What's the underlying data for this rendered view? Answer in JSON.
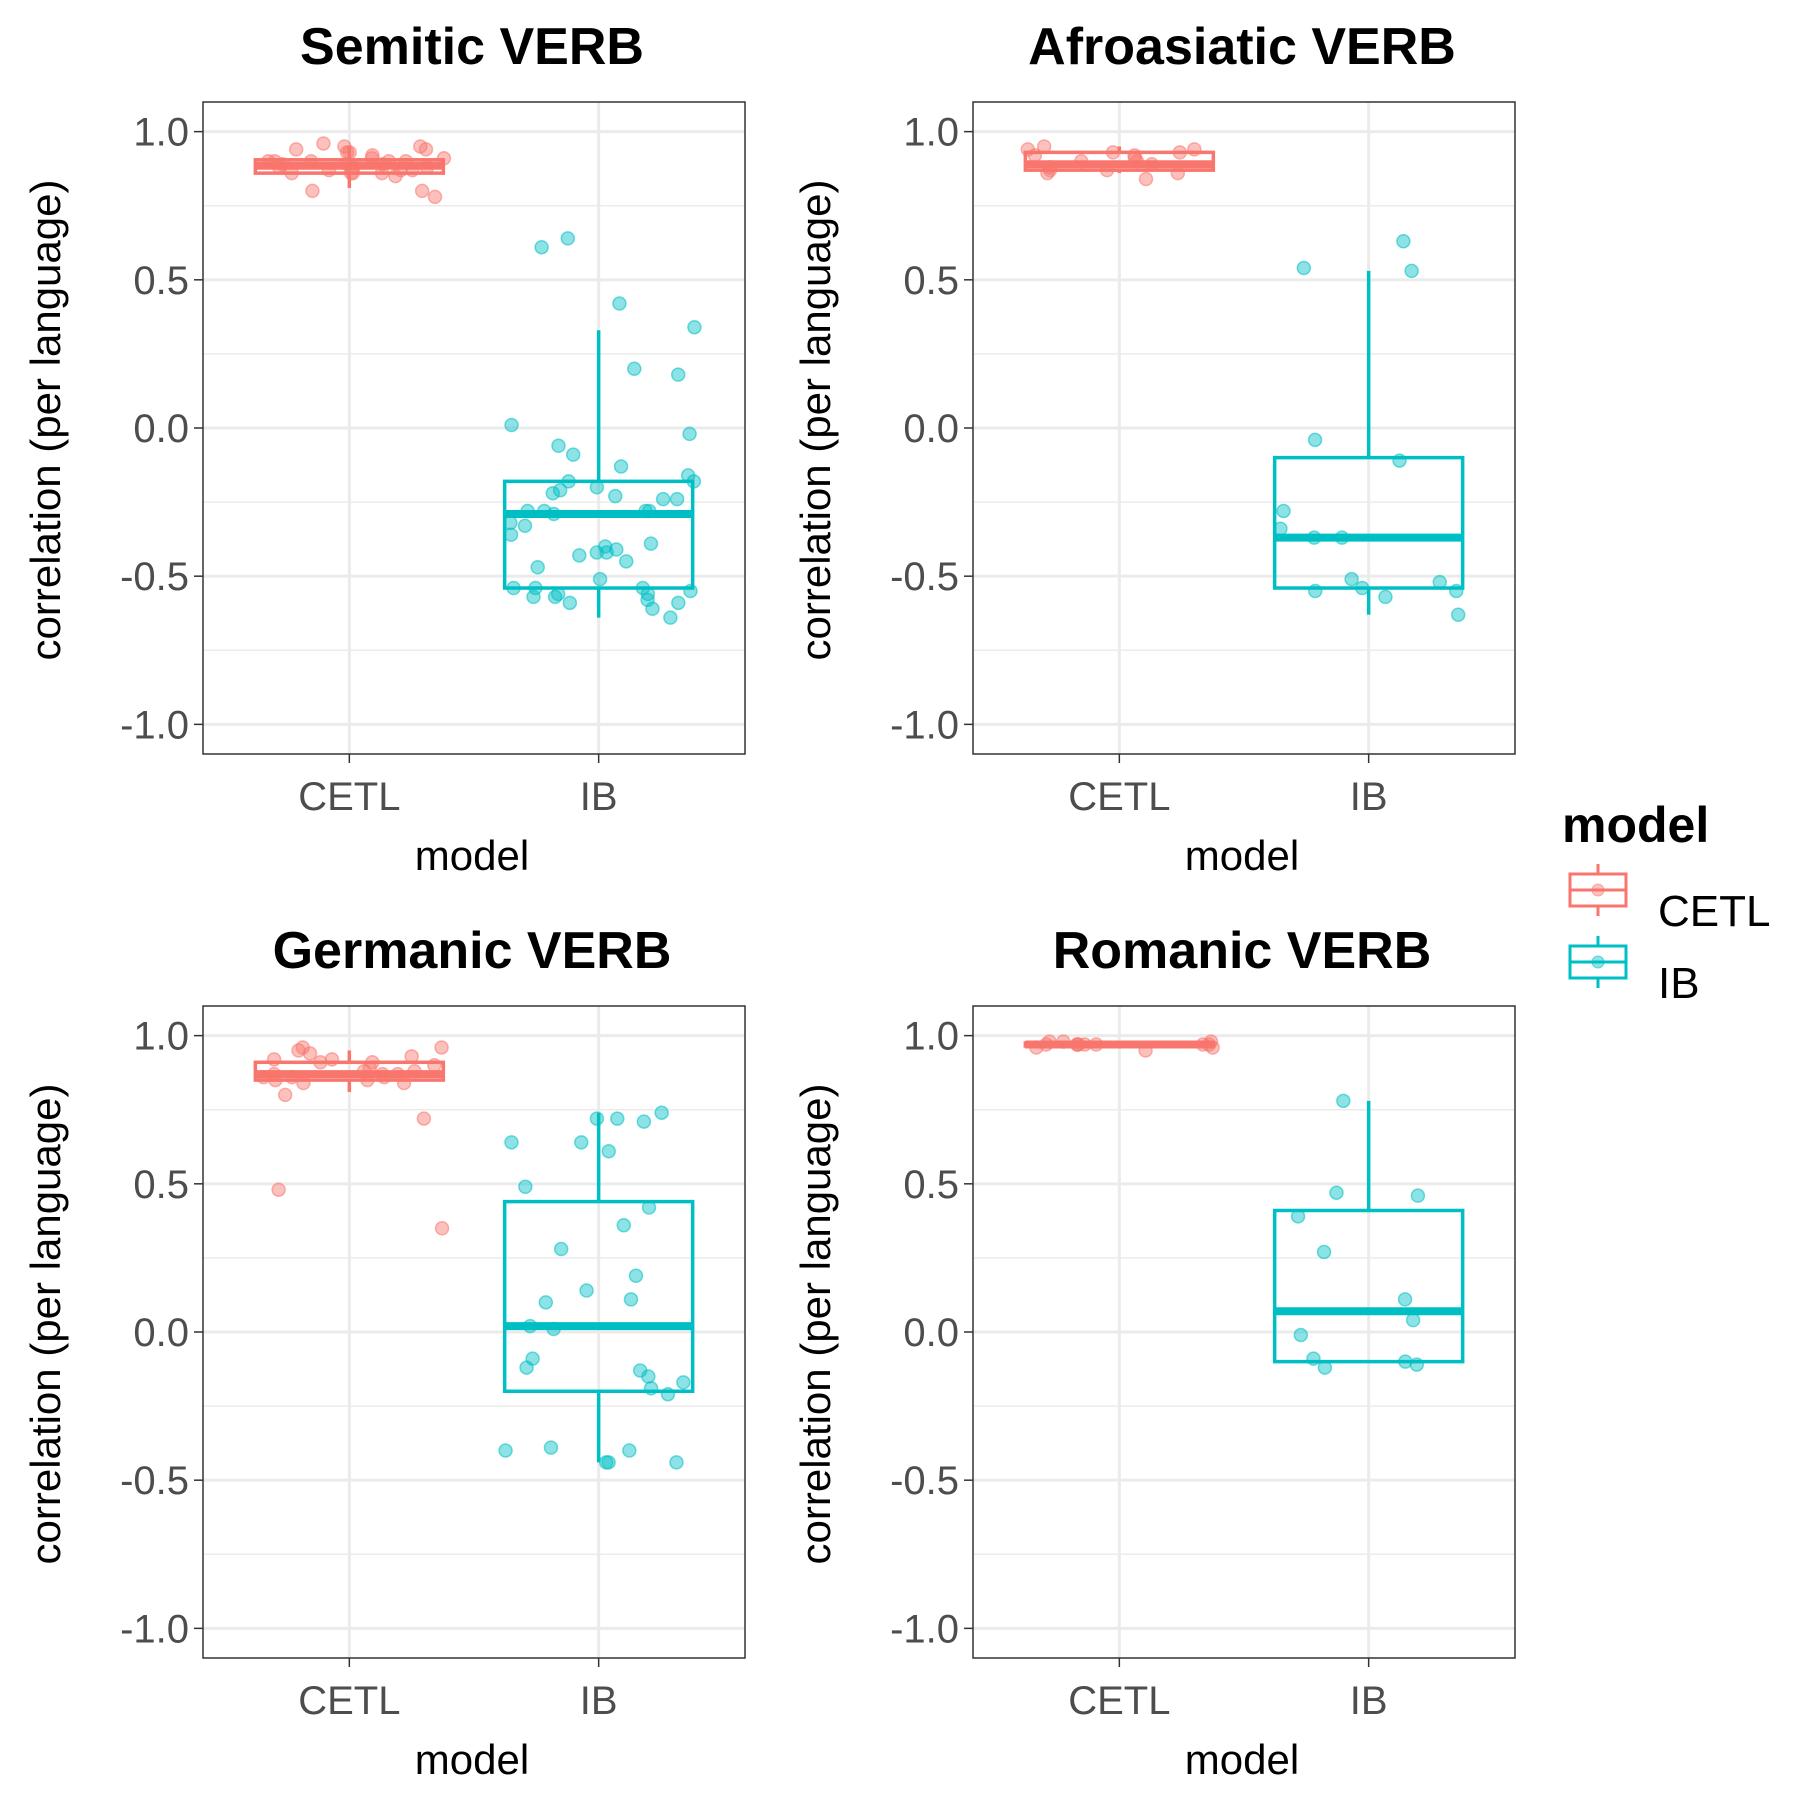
{
  "chart_data": [
    {
      "type": "boxplot",
      "title": "Semitic VERB",
      "xlabel": "model",
      "ylabel": "correlation (per language)",
      "ylim": [
        -1.1,
        1.1
      ],
      "yticks": [
        "-1.0",
        "-0.5",
        "0.0",
        "0.5",
        "1.0"
      ],
      "categories": [
        "CETL",
        "IB"
      ],
      "boxes": [
        {
          "name": "CETL",
          "q1": 0.86,
          "median": 0.885,
          "q3": 0.905,
          "whisker_low": 0.81,
          "whisker_high": 0.95,
          "points": [
            0.85,
            0.94,
            0.93,
            0.9,
            0.88,
            0.8,
            0.86,
            0.9,
            0.87,
            0.92,
            0.89,
            0.86,
            0.95,
            0.88,
            0.9,
            0.86,
            0.87,
            0.91,
            0.9,
            0.94,
            0.86,
            0.89,
            0.88,
            0.87,
            0.95,
            0.96,
            0.8,
            0.78,
            0.9,
            0.93,
            0.91,
            0.89
          ]
        },
        {
          "name": "IB",
          "q1": -0.54,
          "median": -0.29,
          "q3": -0.18,
          "whisker_low": -0.64,
          "whisker_high": 0.33,
          "points": [
            -0.13,
            -0.21,
            -0.28,
            -0.55,
            -0.56,
            -0.24,
            -0.42,
            -0.18,
            -0.28,
            -0.16,
            -0.06,
            -0.09,
            -0.22,
            -0.47,
            -0.45,
            -0.61,
            -0.51,
            -0.59,
            -0.24,
            -0.29,
            -0.64,
            0.42,
            -0.02,
            -0.36,
            -0.33,
            -0.28,
            -0.43,
            -0.59,
            -0.58,
            -0.18,
            -0.2,
            -0.54,
            -0.57,
            0.2,
            0.34,
            -0.23,
            -0.54,
            -0.56,
            0.18,
            0.01,
            -0.32,
            -0.39,
            -0.4,
            -0.42,
            -0.57,
            0.64,
            0.61,
            -0.28,
            -0.54,
            -0.41
          ]
        }
      ]
    },
    {
      "type": "boxplot",
      "title": "Afroasiatic VERB",
      "xlabel": "model",
      "ylabel": "correlation (per language)",
      "ylim": [
        -1.1,
        1.1
      ],
      "yticks": [
        "-1.0",
        "-0.5",
        "0.0",
        "0.5",
        "1.0"
      ],
      "categories": [
        "CETL",
        "IB"
      ],
      "boxes": [
        {
          "name": "CETL",
          "q1": 0.87,
          "median": 0.89,
          "q3": 0.93,
          "whisker_low": 0.86,
          "whisker_high": 0.95,
          "points": [
            0.94,
            0.95,
            0.84,
            0.92,
            0.89,
            0.86,
            0.93,
            0.88,
            0.9,
            0.87,
            0.92,
            0.86,
            0.9,
            0.87,
            0.94,
            0.91,
            0.93
          ]
        },
        {
          "name": "IB",
          "q1": -0.54,
          "median": -0.37,
          "q3": -0.1,
          "whisker_low": -0.63,
          "whisker_high": 0.53,
          "points": [
            0.53,
            -0.37,
            -0.34,
            -0.28,
            -0.55,
            -0.11,
            -0.57,
            -0.55,
            -0.37,
            0.54,
            0.63,
            -0.52,
            -0.54,
            -0.51,
            -0.04,
            -0.63
          ]
        }
      ]
    },
    {
      "type": "boxplot",
      "title": "Germanic VERB",
      "xlabel": "model",
      "ylabel": "correlation (per language)",
      "ylim": [
        -1.1,
        1.1
      ],
      "yticks": [
        "-1.0",
        "-0.5",
        "0.0",
        "0.5",
        "1.0"
      ],
      "categories": [
        "CETL",
        "IB"
      ],
      "boxes": [
        {
          "name": "CETL",
          "q1": 0.85,
          "median": 0.87,
          "q3": 0.91,
          "whisker_low": 0.81,
          "whisker_high": 0.95,
          "points": [
            0.92,
            0.95,
            0.91,
            0.84,
            0.96,
            0.88,
            0.85,
            0.86,
            0.84,
            0.86,
            0.9,
            0.89,
            0.8,
            0.96,
            0.92,
            0.87,
            0.94,
            0.48,
            0.93,
            0.86,
            0.35,
            0.91,
            0.85,
            0.87,
            0.72,
            0.87,
            0.88
          ]
        },
        {
          "name": "IB",
          "q1": -0.2,
          "median": 0.02,
          "q3": 0.44,
          "whisker_low": -0.44,
          "whisker_high": 0.74,
          "points": [
            0.49,
            -0.44,
            0.1,
            -0.15,
            -0.17,
            0.64,
            0.71,
            0.02,
            0.01,
            0.72,
            -0.44,
            0.36,
            -0.4,
            -0.19,
            -0.39,
            0.11,
            -0.44,
            0.64,
            0.74,
            0.72,
            -0.13,
            -0.09,
            -0.12,
            -0.21,
            0.19,
            -0.4,
            0.42,
            0.28,
            0.14,
            0.61
          ]
        }
      ]
    },
    {
      "type": "boxplot",
      "title": "Romanic VERB",
      "xlabel": "model",
      "ylabel": "correlation (per language)",
      "ylim": [
        -1.1,
        1.1
      ],
      "yticks": [
        "-1.0",
        "-0.5",
        "0.0",
        "0.5",
        "1.0"
      ],
      "categories": [
        "CETL",
        "IB"
      ],
      "boxes": [
        {
          "name": "CETL",
          "q1": 0.965,
          "median": 0.97,
          "q3": 0.975,
          "whisker_low": 0.96,
          "whisker_high": 0.98,
          "points": [
            0.97,
            0.98,
            0.97,
            0.96,
            0.97,
            0.97,
            0.98,
            0.97,
            0.96,
            0.97,
            0.95,
            0.97,
            0.98,
            0.97
          ]
        },
        {
          "name": "IB",
          "q1": -0.1,
          "median": 0.07,
          "q3": 0.41,
          "whisker_low": -0.1,
          "whisker_high": 0.78,
          "points": [
            -0.09,
            -0.1,
            0.47,
            0.27,
            0.46,
            -0.12,
            -0.11,
            0.04,
            -0.01,
            0.39,
            0.78,
            0.11
          ]
        }
      ]
    }
  ],
  "legend": {
    "title": "model",
    "items": [
      {
        "label": "CETL",
        "color": "#F8766D"
      },
      {
        "label": "IB",
        "color": "#00BFC4"
      }
    ]
  }
}
